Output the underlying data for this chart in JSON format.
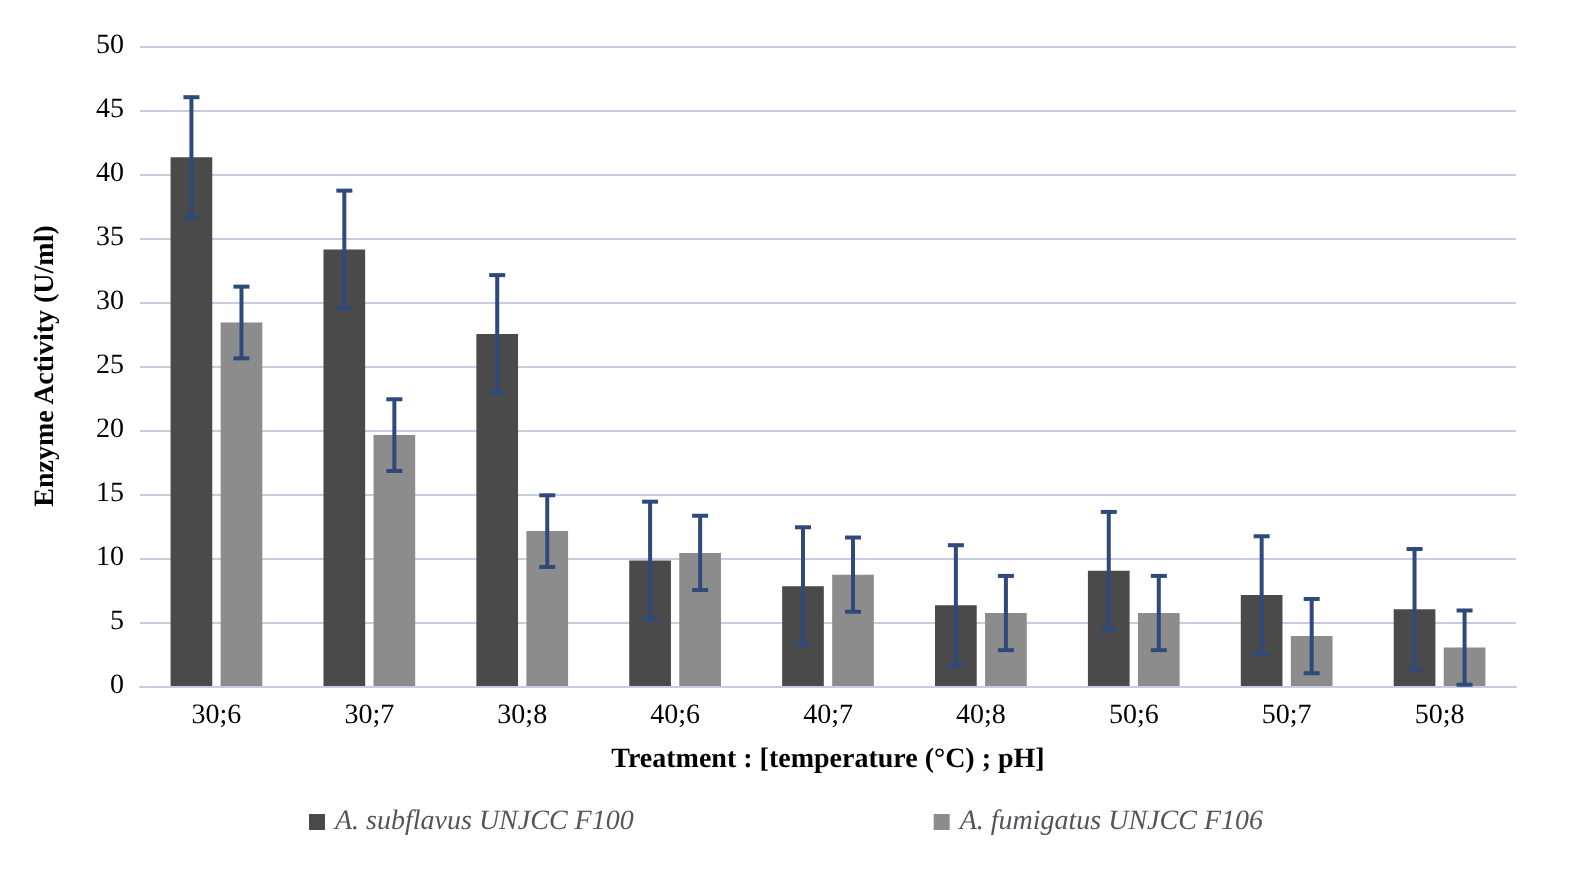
{
  "chart_data": {
    "type": "bar",
    "xlabel": "Treatment : [temperature (°C) ; pH]",
    "ylabel": "Enzyme Activity (U/ml)",
    "categories": [
      "30;6",
      "30;7",
      "30;8",
      "40;6",
      "40;7",
      "40;8",
      "50;6",
      "50;7",
      "50;8"
    ],
    "series": [
      {
        "name": "A. subflavus UNJCC F100",
        "color": "#4a4a4a",
        "values": [
          41.3,
          34.1,
          27.5,
          9.8,
          7.8,
          6.3,
          9.0,
          7.1,
          6.0
        ],
        "errors": [
          4.7,
          4.6,
          4.6,
          4.6,
          4.6,
          4.7,
          4.6,
          4.6,
          4.7
        ]
      },
      {
        "name": "A. fumigatus UNJCC F106",
        "color": "#8c8c8c",
        "values": [
          28.4,
          19.6,
          12.1,
          10.4,
          8.7,
          5.7,
          5.7,
          3.9,
          3.0
        ],
        "errors": [
          2.8,
          2.8,
          2.8,
          2.9,
          2.9,
          2.9,
          2.9,
          2.9,
          2.9
        ]
      }
    ],
    "ylim": [
      0,
      50
    ],
    "yticks": [
      0,
      5,
      10,
      15,
      20,
      25,
      30,
      35,
      40,
      45,
      50
    ],
    "grid": "y",
    "legend": "bottom"
  }
}
